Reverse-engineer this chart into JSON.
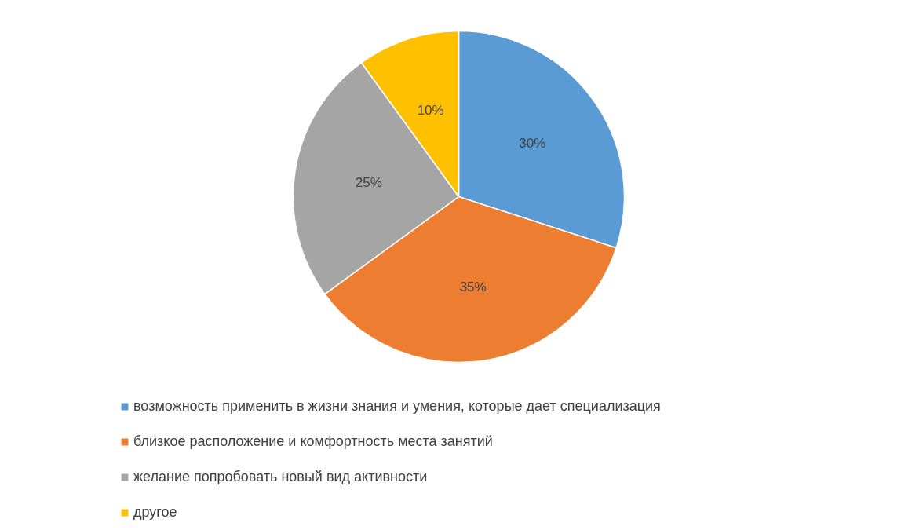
{
  "chart_data": {
    "type": "pie",
    "categories": [
      "возможность применить в жизни знания и умения, которые дает специализация",
      "близкое расположение и комфортность места занятий",
      "желание попробовать новый вид активности",
      "другое"
    ],
    "values": [
      30,
      35,
      25,
      10
    ],
    "colors": [
      "#5b9bd5",
      "#ed7d31",
      "#a5a5a5",
      "#ffc000"
    ],
    "value_labels": [
      "30%",
      "35%",
      "25%",
      "10%"
    ],
    "legend": "bottom"
  }
}
